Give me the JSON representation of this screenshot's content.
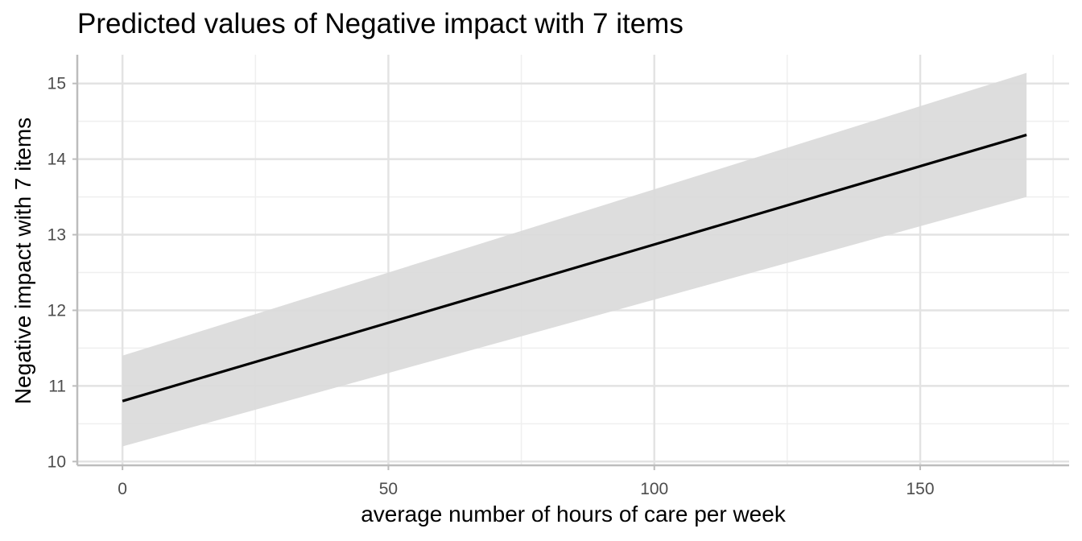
{
  "chart_data": {
    "type": "line",
    "title": "Predicted values of Negative impact with 7 items",
    "xlabel": "average number of hours of care per week",
    "ylabel": "Negative impact with 7 items",
    "xlim": [
      -8.5,
      178
    ],
    "ylim": [
      9.95,
      15.38
    ],
    "x_ticks": [
      0,
      50,
      100,
      150
    ],
    "x_tick_labels": [
      "0",
      "50",
      "100",
      "150"
    ],
    "y_ticks": [
      10,
      11,
      12,
      13,
      14,
      15
    ],
    "y_tick_labels": [
      "10",
      "11",
      "12",
      "13",
      "14",
      "15"
    ],
    "grid": true,
    "series": [
      {
        "x": [
          0,
          170
        ],
        "y": [
          10.8,
          14.32
        ],
        "ci_low": [
          10.2,
          13.5
        ],
        "ci_high": [
          11.4,
          15.14
        ]
      }
    ],
    "colors": {
      "line": "#000000",
      "ribbon": "#d9d9d9",
      "grid_major": "#e3e3e3",
      "grid_minor": "#efefef",
      "axis": "#bdbdbd"
    }
  }
}
